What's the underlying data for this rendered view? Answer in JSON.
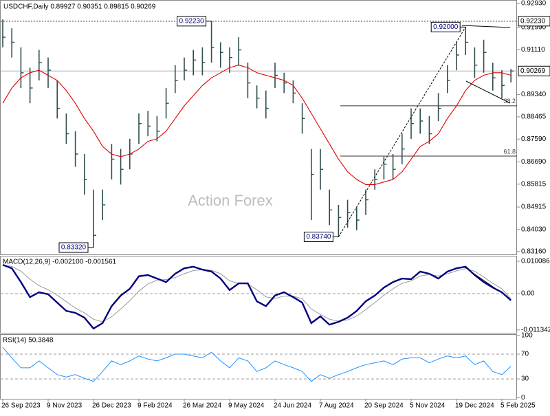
{
  "chart_data": [
    {
      "type": "ohlc",
      "title": "USDCHF,Daily 0.89927 0.90351 0.89815 0.90269",
      "watermark": "Action Forex",
      "color": "#2f4f4f",
      "high": [
        0.923,
        0.9195,
        0.912,
        0.904,
        0.911,
        0.908,
        0.899,
        0.886,
        0.879,
        0.87,
        0.856,
        0.856,
        0.874,
        0.872,
        0.876,
        0.886,
        0.887,
        0.885,
        0.896,
        0.905,
        0.908,
        0.911,
        0.912,
        0.9223,
        0.914,
        0.912,
        0.916,
        0.906,
        0.897,
        0.895,
        0.906,
        0.902,
        0.899,
        0.89,
        0.872,
        0.872,
        0.856,
        0.85,
        0.852,
        0.849,
        0.856,
        0.864,
        0.869,
        0.87,
        0.878,
        0.888,
        0.888,
        0.885,
        0.894,
        0.905,
        0.914,
        0.92,
        0.912,
        0.915,
        0.906,
        0.903,
        0.9035
      ],
      "low": [
        0.912,
        0.908,
        0.896,
        0.89,
        0.899,
        0.896,
        0.884,
        0.874,
        0.865,
        0.854,
        0.8332,
        0.844,
        0.86,
        0.858,
        0.864,
        0.874,
        0.877,
        0.875,
        0.884,
        0.894,
        0.899,
        0.901,
        0.901,
        0.906,
        0.904,
        0.902,
        0.905,
        0.892,
        0.888,
        0.884,
        0.896,
        0.894,
        0.89,
        0.878,
        0.844,
        0.856,
        0.842,
        0.8374,
        0.841,
        0.84,
        0.846,
        0.856,
        0.86,
        0.86,
        0.866,
        0.876,
        0.878,
        0.874,
        0.883,
        0.894,
        0.903,
        0.909,
        0.9,
        0.902,
        0.895,
        0.892,
        0.8982
      ],
      "close": [
        0.916,
        0.914,
        0.902,
        0.896,
        0.906,
        0.903,
        0.888,
        0.878,
        0.87,
        0.86,
        0.838,
        0.85,
        0.868,
        0.864,
        0.87,
        0.882,
        0.881,
        0.879,
        0.89,
        0.899,
        0.903,
        0.907,
        0.906,
        0.912,
        0.91,
        0.908,
        0.911,
        0.898,
        0.892,
        0.888,
        0.901,
        0.898,
        0.894,
        0.884,
        0.862,
        0.864,
        0.848,
        0.845,
        0.847,
        0.844,
        0.852,
        0.86,
        0.866,
        0.864,
        0.872,
        0.882,
        0.883,
        0.878,
        0.888,
        0.899,
        0.909,
        0.914,
        0.905,
        0.91,
        0.9,
        0.897,
        0.90269
      ],
      "ma": {
        "color": "#e00000",
        "values": [
          0.89,
          0.896,
          0.9,
          0.902,
          0.903,
          0.901,
          0.899,
          0.895,
          0.89,
          0.884,
          0.879,
          0.873,
          0.87,
          0.869,
          0.87,
          0.872,
          0.875,
          0.876,
          0.879,
          0.884,
          0.889,
          0.893,
          0.897,
          0.9,
          0.902,
          0.904,
          0.905,
          0.904,
          0.902,
          0.901,
          0.9,
          0.899,
          0.897,
          0.892,
          0.886,
          0.88,
          0.874,
          0.868,
          0.863,
          0.86,
          0.858,
          0.858,
          0.859,
          0.86,
          0.863,
          0.868,
          0.873,
          0.875,
          0.878,
          0.884,
          0.889,
          0.895,
          0.899,
          0.901,
          0.902,
          0.902,
          0.901
        ]
      },
      "ylim": [
        0.8305,
        0.9301
      ],
      "yticks": [
        {
          "value": 0.9293,
          "label": "0.92930"
        },
        {
          "value": 0.9199,
          "label": "0.91990"
        },
        {
          "value": 0.9111,
          "label": "0.91110"
        },
        {
          "value": 0.8934,
          "label": "0.89340"
        },
        {
          "value": 0.88465,
          "label": "0.88465"
        },
        {
          "value": 0.8759,
          "label": "0.87590"
        },
        {
          "value": 0.8669,
          "label": "0.86690"
        },
        {
          "value": 0.85815,
          "label": "0.85815"
        },
        {
          "value": 0.84915,
          "label": "0.84915"
        },
        {
          "value": 0.8403,
          "label": "0.84030"
        },
        {
          "value": 0.8316,
          "label": "0.83160"
        }
      ],
      "levels": [
        {
          "value": 0.9223,
          "label": "0.92230",
          "line": "dotted"
        },
        {
          "value": 0.90269,
          "label": "0.90269",
          "line": "solid"
        }
      ],
      "peaks": [
        {
          "value": 0.9223,
          "label": "0.92230",
          "kind": "high"
        },
        {
          "value": 0.8332,
          "label": "0.83320",
          "kind": "low"
        },
        {
          "value": 0.92,
          "label": "0.92000",
          "kind": "high"
        },
        {
          "value": 0.8374,
          "label": "0.83740",
          "kind": "low"
        }
      ],
      "fib_levels": [
        {
          "ratio": 38.2,
          "price": 0.889
        },
        {
          "ratio": 61.8,
          "price": 0.8692
        }
      ]
    },
    {
      "type": "macd",
      "title": "MACD(12,26,9) -0.002100 -0.001561",
      "series": [
        {
          "color": "#000080",
          "values": [
            0.009,
            0.0079,
            0.0036,
            -0.0011,
            0.0004,
            -0.0002,
            -0.0028,
            -0.0054,
            -0.006,
            -0.0075,
            -0.0109,
            -0.0092,
            -0.0039,
            -0.0006,
            0.0015,
            0.0054,
            0.0058,
            0.0047,
            0.0036,
            0.0062,
            0.0079,
            0.0084,
            0.0075,
            0.0069,
            0.0047,
            0.0011,
            0.0032,
            0.0032,
            -0.0024,
            -0.0039,
            -0.0006,
            0.0004,
            -0.0011,
            -0.0028,
            -0.0092,
            -0.0071,
            -0.0097,
            -0.0088,
            -0.0075,
            -0.0054,
            -0.0024,
            -0.0006,
            0.0019,
            0.0036,
            0.0047,
            0.0045,
            0.0069,
            0.0062,
            0.0047,
            0.0069,
            0.0079,
            0.0084,
            0.0058,
            0.0036,
            0.0019,
            0.0004,
            -0.0021
          ]
        },
        {
          "color": "#999999",
          "values": [
            0.0088,
            0.0085,
            0.007,
            0.0045,
            0.0025,
            0.0012,
            -0.0005,
            -0.0025,
            -0.0045,
            -0.006,
            -0.008,
            -0.0088,
            -0.0072,
            -0.0048,
            -0.0022,
            0.0008,
            0.003,
            0.0042,
            0.0044,
            0.005,
            0.0062,
            0.0072,
            0.0075,
            0.0073,
            0.0062,
            0.004,
            0.0032,
            0.003,
            0.0012,
            -0.001,
            -0.0015,
            -0.0008,
            -0.0008,
            -0.0016,
            -0.0048,
            -0.0065,
            -0.008,
            -0.0086,
            -0.0082,
            -0.007,
            -0.005,
            -0.0028,
            -0.0005,
            0.0015,
            0.0032,
            0.004,
            0.0055,
            0.006,
            0.0055,
            0.0062,
            0.0071,
            0.0078,
            0.007,
            0.0052,
            0.0032,
            0.0015,
            -0.0016
          ]
        }
      ],
      "ylim": [
        -0.01223,
        0.01159
      ],
      "yticks": [
        0.010086,
        {
          "value": 0,
          "label": "0.00"
        },
        -0.011342
      ],
      "levels": [
        0
      ]
    },
    {
      "type": "rsi",
      "title": "RSI(14) 50.3848",
      "color": "#1e90ff",
      "values": [
        81,
        64,
        48,
        48,
        59,
        48,
        37,
        33,
        37,
        31,
        26,
        42,
        59,
        53,
        59,
        67,
        62,
        59,
        64,
        70,
        70,
        67,
        64,
        73,
        59,
        48,
        64,
        59,
        42,
        48,
        59,
        53,
        48,
        42,
        26,
        37,
        31,
        37,
        42,
        48,
        53,
        56,
        59,
        53,
        62,
        64,
        64,
        56,
        62,
        67,
        64,
        67,
        53,
        59,
        42,
        37,
        50.3848
      ],
      "ylim": [
        -2,
        101
      ],
      "yticks": [
        100,
        70,
        30,
        0
      ],
      "levels": [
        70,
        30
      ],
      "categories": [
        "26 Sep 2023",
        null,
        null,
        null,
        null,
        "9 Nov 2023",
        null,
        null,
        null,
        null,
        "26 Dec 2023",
        null,
        null,
        null,
        null,
        "9 Feb 2024",
        null,
        null,
        null,
        null,
        "26 Mar 2024",
        null,
        null,
        null,
        null,
        "9 May 2024",
        null,
        null,
        null,
        null,
        "24 Jun 2024",
        null,
        null,
        null,
        null,
        "7 Aug 2024",
        null,
        null,
        null,
        null,
        "20 Sep 2024",
        null,
        null,
        null,
        null,
        "5 Nov 2024",
        null,
        null,
        null,
        null,
        "19 Dec 2024",
        null,
        null,
        null,
        null,
        "5 Feb 2025",
        null
      ]
    }
  ]
}
